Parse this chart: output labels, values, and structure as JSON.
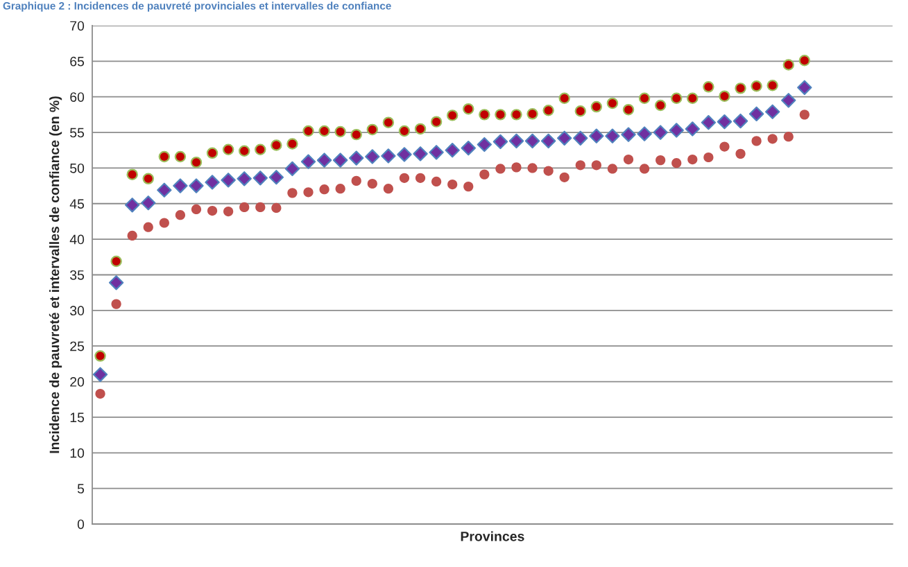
{
  "chart_data": {
    "type": "scatter",
    "title": "Graphique 2 : Incidences de pauvreté provinciales et intervalles de confiance",
    "xlabel": "Provinces",
    "ylabel": "Incidence de pauvreté et intervalles de confiance (en %)",
    "categories": [
      null,
      null,
      null,
      null,
      null,
      null,
      null,
      null,
      null,
      null,
      null,
      null,
      null,
      null,
      null,
      null,
      null,
      null,
      null,
      null,
      null,
      null,
      null,
      null,
      null,
      null,
      null,
      null,
      null,
      null,
      null,
      null,
      null,
      null,
      null,
      null,
      null,
      null,
      null,
      null,
      null,
      null,
      null,
      null,
      null,
      null,
      null,
      null,
      null,
      null
    ],
    "series": [
      {
        "color": "#c00000",
        "marker": "circle",
        "values": [
          23.6,
          36.9,
          49.1,
          48.5,
          51.6,
          51.6,
          50.8,
          52.1,
          52.6,
          52.4,
          52.6,
          53.2,
          53.4,
          55.2,
          55.2,
          55.1,
          54.7,
          55.4,
          56.4,
          55.2,
          55.5,
          56.5,
          57.4,
          58.3,
          57.5,
          57.5,
          57.5,
          57.6,
          58.1,
          59.8,
          58.0,
          58.6,
          59.1,
          58.2,
          59.8,
          58.8,
          59.8,
          59.8,
          61.4,
          60.1,
          61.2,
          61.5,
          61.6,
          64.5,
          65.1,
          null,
          null,
          null,
          null,
          null
        ]
      },
      {
        "color": "#7030a0",
        "marker": "diamond",
        "values": [
          21.0,
          33.9,
          44.8,
          45.1,
          46.9,
          47.5,
          47.5,
          48.0,
          48.3,
          48.5,
          48.6,
          48.7,
          49.9,
          50.9,
          51.1,
          51.1,
          51.4,
          51.6,
          51.7,
          51.9,
          52.0,
          52.2,
          52.5,
          52.8,
          53.3,
          53.7,
          53.8,
          53.8,
          53.8,
          54.2,
          54.2,
          54.5,
          54.5,
          54.7,
          54.8,
          55.0,
          55.3,
          55.5,
          56.4,
          56.5,
          56.6,
          57.6,
          57.9,
          59.5,
          61.3,
          null,
          null,
          null,
          null,
          null
        ]
      },
      {
        "color": "#c0504d",
        "marker": "circle",
        "values": [
          18.3,
          30.9,
          40.5,
          41.7,
          42.3,
          43.4,
          44.2,
          44.0,
          43.9,
          44.5,
          44.5,
          44.4,
          46.5,
          46.6,
          47.0,
          47.1,
          48.2,
          47.8,
          47.1,
          48.6,
          48.6,
          48.1,
          47.7,
          47.4,
          49.1,
          49.9,
          50.1,
          50.0,
          49.6,
          48.7,
          50.4,
          50.4,
          49.9,
          51.2,
          49.9,
          51.1,
          50.7,
          51.2,
          51.5,
          53.0,
          52.0,
          53.8,
          54.1,
          54.4,
          57.5,
          null,
          null,
          null,
          null,
          null
        ]
      }
    ],
    "ylim": [
      0,
      70
    ],
    "yticks": [
      0,
      5,
      10,
      15,
      20,
      25,
      30,
      35,
      40,
      45,
      50,
      55,
      60,
      65,
      70
    ],
    "grid": "y",
    "legend": false
  }
}
